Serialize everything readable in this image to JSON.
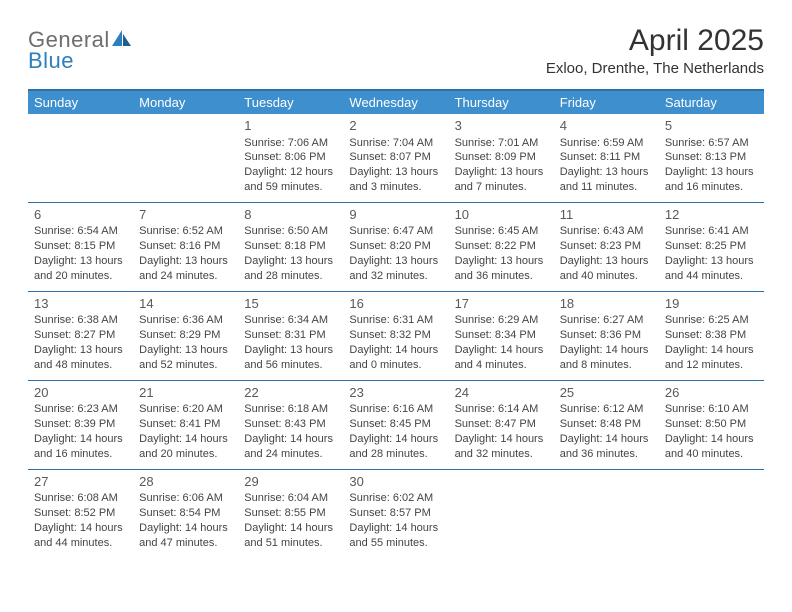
{
  "brand": {
    "part1": "General",
    "part2": "Blue"
  },
  "title": "April 2025",
  "location": "Exloo, Drenthe, The Netherlands",
  "colors": {
    "header_bg": "#3d8fce",
    "rule": "#2f6fa8",
    "brand_gray": "#6e6e6e",
    "brand_blue": "#2b7fbf",
    "text": "#444444"
  },
  "day_headers": [
    "Sunday",
    "Monday",
    "Tuesday",
    "Wednesday",
    "Thursday",
    "Friday",
    "Saturday"
  ],
  "weeks": [
    [
      null,
      null,
      {
        "n": "1",
        "sunrise": "Sunrise: 7:06 AM",
        "sunset": "Sunset: 8:06 PM",
        "day1": "Daylight: 12 hours",
        "day2": "and 59 minutes."
      },
      {
        "n": "2",
        "sunrise": "Sunrise: 7:04 AM",
        "sunset": "Sunset: 8:07 PM",
        "day1": "Daylight: 13 hours",
        "day2": "and 3 minutes."
      },
      {
        "n": "3",
        "sunrise": "Sunrise: 7:01 AM",
        "sunset": "Sunset: 8:09 PM",
        "day1": "Daylight: 13 hours",
        "day2": "and 7 minutes."
      },
      {
        "n": "4",
        "sunrise": "Sunrise: 6:59 AM",
        "sunset": "Sunset: 8:11 PM",
        "day1": "Daylight: 13 hours",
        "day2": "and 11 minutes."
      },
      {
        "n": "5",
        "sunrise": "Sunrise: 6:57 AM",
        "sunset": "Sunset: 8:13 PM",
        "day1": "Daylight: 13 hours",
        "day2": "and 16 minutes."
      }
    ],
    [
      {
        "n": "6",
        "sunrise": "Sunrise: 6:54 AM",
        "sunset": "Sunset: 8:15 PM",
        "day1": "Daylight: 13 hours",
        "day2": "and 20 minutes."
      },
      {
        "n": "7",
        "sunrise": "Sunrise: 6:52 AM",
        "sunset": "Sunset: 8:16 PM",
        "day1": "Daylight: 13 hours",
        "day2": "and 24 minutes."
      },
      {
        "n": "8",
        "sunrise": "Sunrise: 6:50 AM",
        "sunset": "Sunset: 8:18 PM",
        "day1": "Daylight: 13 hours",
        "day2": "and 28 minutes."
      },
      {
        "n": "9",
        "sunrise": "Sunrise: 6:47 AM",
        "sunset": "Sunset: 8:20 PM",
        "day1": "Daylight: 13 hours",
        "day2": "and 32 minutes."
      },
      {
        "n": "10",
        "sunrise": "Sunrise: 6:45 AM",
        "sunset": "Sunset: 8:22 PM",
        "day1": "Daylight: 13 hours",
        "day2": "and 36 minutes."
      },
      {
        "n": "11",
        "sunrise": "Sunrise: 6:43 AM",
        "sunset": "Sunset: 8:23 PM",
        "day1": "Daylight: 13 hours",
        "day2": "and 40 minutes."
      },
      {
        "n": "12",
        "sunrise": "Sunrise: 6:41 AM",
        "sunset": "Sunset: 8:25 PM",
        "day1": "Daylight: 13 hours",
        "day2": "and 44 minutes."
      }
    ],
    [
      {
        "n": "13",
        "sunrise": "Sunrise: 6:38 AM",
        "sunset": "Sunset: 8:27 PM",
        "day1": "Daylight: 13 hours",
        "day2": "and 48 minutes."
      },
      {
        "n": "14",
        "sunrise": "Sunrise: 6:36 AM",
        "sunset": "Sunset: 8:29 PM",
        "day1": "Daylight: 13 hours",
        "day2": "and 52 minutes."
      },
      {
        "n": "15",
        "sunrise": "Sunrise: 6:34 AM",
        "sunset": "Sunset: 8:31 PM",
        "day1": "Daylight: 13 hours",
        "day2": "and 56 minutes."
      },
      {
        "n": "16",
        "sunrise": "Sunrise: 6:31 AM",
        "sunset": "Sunset: 8:32 PM",
        "day1": "Daylight: 14 hours",
        "day2": "and 0 minutes."
      },
      {
        "n": "17",
        "sunrise": "Sunrise: 6:29 AM",
        "sunset": "Sunset: 8:34 PM",
        "day1": "Daylight: 14 hours",
        "day2": "and 4 minutes."
      },
      {
        "n": "18",
        "sunrise": "Sunrise: 6:27 AM",
        "sunset": "Sunset: 8:36 PM",
        "day1": "Daylight: 14 hours",
        "day2": "and 8 minutes."
      },
      {
        "n": "19",
        "sunrise": "Sunrise: 6:25 AM",
        "sunset": "Sunset: 8:38 PM",
        "day1": "Daylight: 14 hours",
        "day2": "and 12 minutes."
      }
    ],
    [
      {
        "n": "20",
        "sunrise": "Sunrise: 6:23 AM",
        "sunset": "Sunset: 8:39 PM",
        "day1": "Daylight: 14 hours",
        "day2": "and 16 minutes."
      },
      {
        "n": "21",
        "sunrise": "Sunrise: 6:20 AM",
        "sunset": "Sunset: 8:41 PM",
        "day1": "Daylight: 14 hours",
        "day2": "and 20 minutes."
      },
      {
        "n": "22",
        "sunrise": "Sunrise: 6:18 AM",
        "sunset": "Sunset: 8:43 PM",
        "day1": "Daylight: 14 hours",
        "day2": "and 24 minutes."
      },
      {
        "n": "23",
        "sunrise": "Sunrise: 6:16 AM",
        "sunset": "Sunset: 8:45 PM",
        "day1": "Daylight: 14 hours",
        "day2": "and 28 minutes."
      },
      {
        "n": "24",
        "sunrise": "Sunrise: 6:14 AM",
        "sunset": "Sunset: 8:47 PM",
        "day1": "Daylight: 14 hours",
        "day2": "and 32 minutes."
      },
      {
        "n": "25",
        "sunrise": "Sunrise: 6:12 AM",
        "sunset": "Sunset: 8:48 PM",
        "day1": "Daylight: 14 hours",
        "day2": "and 36 minutes."
      },
      {
        "n": "26",
        "sunrise": "Sunrise: 6:10 AM",
        "sunset": "Sunset: 8:50 PM",
        "day1": "Daylight: 14 hours",
        "day2": "and 40 minutes."
      }
    ],
    [
      {
        "n": "27",
        "sunrise": "Sunrise: 6:08 AM",
        "sunset": "Sunset: 8:52 PM",
        "day1": "Daylight: 14 hours",
        "day2": "and 44 minutes."
      },
      {
        "n": "28",
        "sunrise": "Sunrise: 6:06 AM",
        "sunset": "Sunset: 8:54 PM",
        "day1": "Daylight: 14 hours",
        "day2": "and 47 minutes."
      },
      {
        "n": "29",
        "sunrise": "Sunrise: 6:04 AM",
        "sunset": "Sunset: 8:55 PM",
        "day1": "Daylight: 14 hours",
        "day2": "and 51 minutes."
      },
      {
        "n": "30",
        "sunrise": "Sunrise: 6:02 AM",
        "sunset": "Sunset: 8:57 PM",
        "day1": "Daylight: 14 hours",
        "day2": "and 55 minutes."
      },
      null,
      null,
      null
    ]
  ]
}
